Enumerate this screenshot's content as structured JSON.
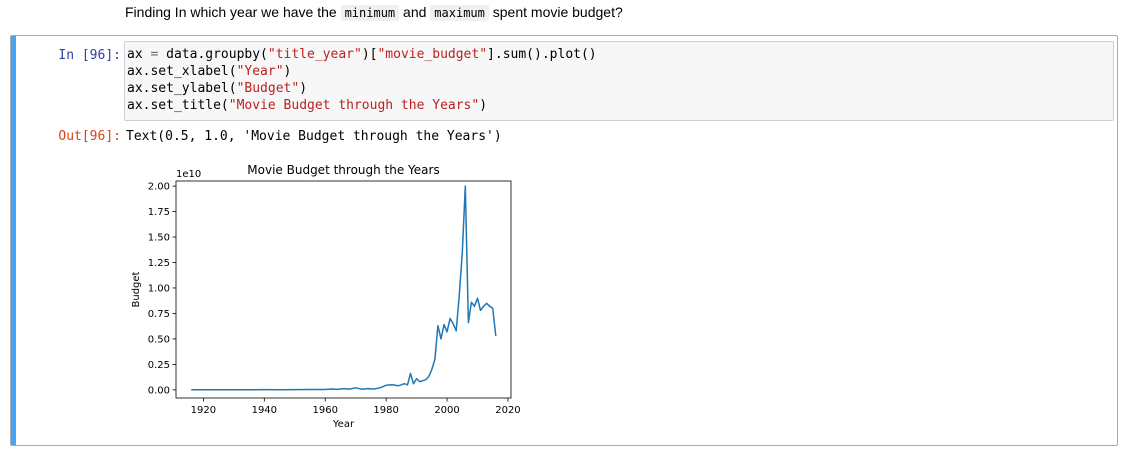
{
  "markdown": {
    "prefix": "Finding In which year we have the",
    "code1": "minimum",
    "mid": "and",
    "code2": "maximum",
    "suffix": "spent movie budget?"
  },
  "cell": {
    "in_prompt": "In [96]:",
    "out_prompt": "Out[96]:",
    "code_lines": [
      [
        "ax ",
        "=",
        " data.groupby(",
        "\"title_year\"",
        ")[",
        "\"movie_budget\"",
        "].sum().plot()"
      ],
      [
        "ax.set_xlabel(",
        "\"Year\"",
        ")"
      ],
      [
        "ax.set_ylabel(",
        "\"Budget\"",
        ")"
      ],
      [
        "ax.set_title(",
        "\"Movie Budget through the Years\"",
        ")"
      ]
    ],
    "output_text": "Text(0.5, 1.0, 'Movie Budget through the Years')"
  },
  "chart_data": {
    "type": "line",
    "title": "Movie Budget through the Years",
    "xlabel": "Year",
    "ylabel": "Budget",
    "y_offset_label": "1e10",
    "xlim": [
      1911,
      2021
    ],
    "ylim": [
      -0.08,
      2.05
    ],
    "x_ticks": [
      1920,
      1940,
      1960,
      1980,
      2000,
      2020
    ],
    "y_ticks": [
      0.0,
      0.25,
      0.5,
      0.75,
      1.0,
      1.25,
      1.5,
      1.75,
      2.0
    ],
    "y_tick_labels": [
      "0.00",
      "0.25",
      "0.50",
      "0.75",
      "1.00",
      "1.25",
      "1.50",
      "1.75",
      "2.00"
    ],
    "grid": false,
    "line_color": "#1f77b4",
    "series": [
      {
        "x": [
          1916,
          1920,
          1925,
          1930,
          1935,
          1940,
          1945,
          1950,
          1955,
          1960,
          1962,
          1964,
          1966,
          1968,
          1970,
          1972,
          1974,
          1976,
          1978,
          1980,
          1982,
          1984,
          1986,
          1987,
          1988,
          1989,
          1990,
          1991,
          1992,
          1993,
          1994,
          1995,
          1996,
          1997,
          1998,
          1999,
          2000,
          2001,
          2002,
          2003,
          2004,
          2005,
          2006,
          2007,
          2008,
          2009,
          2010,
          2011,
          2012,
          2013,
          2014,
          2015,
          2016
        ],
        "y": [
          0.0,
          0.0,
          0.0,
          0.0,
          0.0,
          0.002,
          0.001,
          0.002,
          0.003,
          0.003,
          0.008,
          0.004,
          0.012,
          0.007,
          0.02,
          0.006,
          0.012,
          0.008,
          0.02,
          0.045,
          0.05,
          0.04,
          0.06,
          0.05,
          0.16,
          0.06,
          0.11,
          0.08,
          0.09,
          0.1,
          0.13,
          0.2,
          0.3,
          0.63,
          0.5,
          0.64,
          0.57,
          0.7,
          0.65,
          0.58,
          0.92,
          1.35,
          2.0,
          0.66,
          0.86,
          0.82,
          0.9,
          0.78,
          0.82,
          0.85,
          0.82,
          0.8,
          0.53
        ]
      }
    ]
  }
}
